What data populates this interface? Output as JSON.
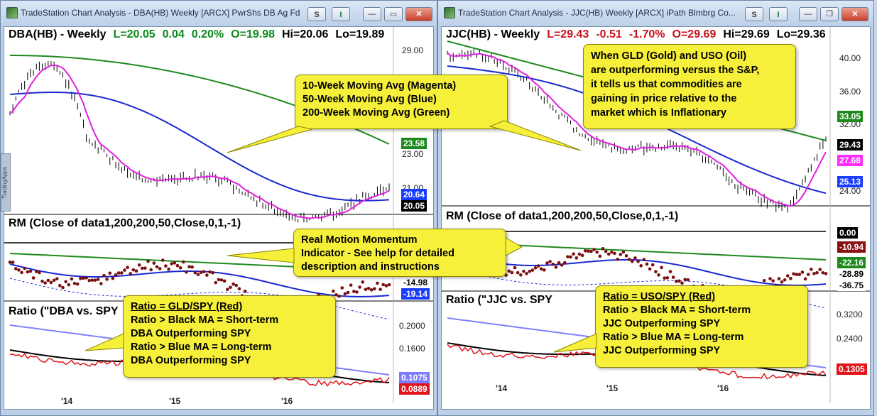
{
  "left": {
    "window_title": "TradeStation Chart Analysis - DBA(HB) Weekly [ARCX] PwrShs DB Ag Fd",
    "btn_s": "S",
    "btn_i": "I",
    "symbol": "DBA(HB) - Weekly",
    "last": "L=20.05",
    "change": "0.04",
    "pct": "0.20%",
    "open": "O=19.98",
    "high": "Hi=20.06",
    "low": "Lo=19.89",
    "y_labels": [
      "29.00",
      "23.00",
      "21.00"
    ],
    "price_tags": [
      {
        "value": "23.58",
        "bg": "#1e8a1e",
        "fg": "#ffffff"
      },
      {
        "value": "20.64",
        "bg": "#1a3cff",
        "fg": "#ffffff"
      },
      {
        "value": "20.05",
        "bg": "#000000",
        "fg": "#ffffff"
      }
    ],
    "rm_label": "RM (Close of data1,200,200,50,Close,0,1,-1)",
    "rm_tags": [
      {
        "value": "-14.98",
        "bg": "#ffffff",
        "fg": "#000000"
      },
      {
        "value": "-19.14",
        "bg": "#1a3cff",
        "fg": "#ffffff"
      }
    ],
    "ratio_label": "Ratio (\"DBA vs. SPY",
    "ratio_y_labels": [
      "0.2000",
      "0.1600"
    ],
    "ratio_tags": [
      {
        "value": "0.1075",
        "bg": "#7b7bff",
        "fg": "#ffffff"
      },
      {
        "value": "0.0889",
        "bg": "#e0141a",
        "fg": "#ffffff"
      }
    ],
    "x_labels": [
      "'14",
      "'15",
      "'16"
    ],
    "side_tab": "TradingApps"
  },
  "right": {
    "window_title": "TradeStation Chart Analysis - JJC(HB) Weekly [ARCX] iPath Blmbrg Co...",
    "btn_s": "S",
    "btn_i": "I",
    "symbol": "JJC(HB) - Weekly",
    "last": "L=29.43",
    "change": "-0.51",
    "pct": "-1.70%",
    "open": "O=29.69",
    "high": "Hi=29.69",
    "low": "Lo=29.36",
    "y_labels": [
      "40.00",
      "36.00",
      "32.00",
      "24.00"
    ],
    "price_tags": [
      {
        "value": "33.05",
        "bg": "#1e8a1e",
        "fg": "#ffffff"
      },
      {
        "value": "29.43",
        "bg": "#000000",
        "fg": "#ffffff"
      },
      {
        "value": "27.68",
        "bg": "#ff2bff",
        "fg": "#ffffff"
      },
      {
        "value": "25.13",
        "bg": "#1a3cff",
        "fg": "#ffffff"
      }
    ],
    "rm_label": "RM (Close of data1,200,200,50,Close,0,1,-1)",
    "rm_tags": [
      {
        "value": "0.00",
        "bg": "#000000",
        "fg": "#ffffff"
      },
      {
        "value": "-10.94",
        "bg": "#8b1010",
        "fg": "#ffffff"
      },
      {
        "value": "-22.16",
        "bg": "#1e8a1e",
        "fg": "#ffffff"
      },
      {
        "value": "-28.89",
        "bg": "#ffffff",
        "fg": "#000000"
      },
      {
        "value": "-36.75",
        "bg": "#ffffff",
        "fg": "#000000"
      }
    ],
    "ratio_label": "Ratio (\"JJC vs. SPY",
    "ratio_y_labels": [
      "0.3200",
      "0.2400"
    ],
    "ratio_tags": [
      {
        "value": "0.1305",
        "bg": "#e0141a",
        "fg": "#ffffff"
      }
    ],
    "x_labels": [
      "'14",
      "'15",
      "'16"
    ]
  },
  "callouts": {
    "ma": [
      "10-Week Moving Avg (Magenta)",
      "50-Week Moving Avg (Blue)",
      "200-Week Moving Avg (Green)"
    ],
    "rm": [
      "Real Motion Momentum",
      "Indicator - See help for detailed",
      "description and instructions"
    ],
    "dba": [
      "Ratio = GLD/SPY (Red)",
      "Ratio > Black MA = Short-term",
      "DBA Outperforming SPY",
      "Ratio > Blue MA =  Long-term",
      "DBA Outperforming SPY"
    ],
    "gld": [
      "When GLD (Gold) and USO (Oil)",
      "are outperforming versus the S&P,",
      "it tells us that commodities are",
      "gaining in price relative to the",
      "market which is Inflationary"
    ],
    "jjc": [
      "Ratio = USO/SPY (Red)",
      "Ratio > Black MA = Short-term",
      "JJC Outperforming SPY",
      "Ratio > Blue MA =  Long-term",
      "JJC Outperforming SPY"
    ]
  },
  "colors": {
    "ma10": "#e020e0",
    "ma50": "#1a28d0",
    "ma200": "#1e8a1e",
    "price": "#000000",
    "rm_dots": "#7a0f0f",
    "ratio": "#e0141a",
    "ratio_short_ma": "#000000",
    "ratio_long_ma": "#8080ff"
  }
}
